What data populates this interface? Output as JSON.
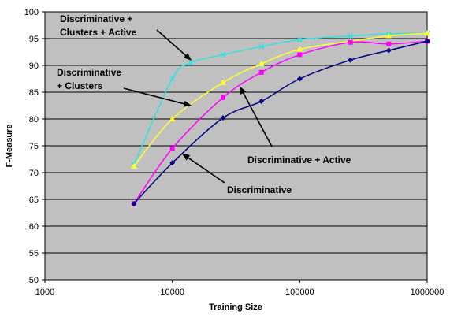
{
  "chart_data": {
    "type": "line",
    "xlabel": "Training Size",
    "ylabel": "F-Measure",
    "xscale": "log",
    "xlim": [
      1000,
      1000000
    ],
    "ylim": [
      50,
      100
    ],
    "xticks": [
      1000,
      10000,
      100000,
      1000000
    ],
    "xtick_labels": [
      "1000",
      "10000",
      "100000",
      "1000000"
    ],
    "yticks": [
      50,
      55,
      60,
      65,
      70,
      75,
      80,
      85,
      90,
      95,
      100
    ],
    "ytick_labels": [
      "50",
      "55",
      "60",
      "65",
      "70",
      "75",
      "80",
      "85",
      "90",
      "95",
      "100"
    ],
    "grid": "horizontal",
    "plot_background": "#c0c0c0",
    "series": [
      {
        "key": "cyan",
        "color": "#33e0e0",
        "marker": "x",
        "x": [
          5000,
          10000,
          14000,
          25000,
          50000,
          100000,
          250000,
          500000,
          1000000
        ],
        "y": [
          71.5,
          87.5,
          90.5,
          92.0,
          93.5,
          94.8,
          95.5,
          95.9,
          96.0
        ]
      },
      {
        "key": "yellow",
        "color": "#ffff33",
        "marker": "triangle",
        "x": [
          5000,
          10000,
          25000,
          50000,
          100000,
          250000,
          500000,
          1000000
        ],
        "y": [
          71.2,
          80.0,
          86.8,
          90.3,
          93.0,
          94.5,
          95.5,
          96.0
        ]
      },
      {
        "key": "magenta",
        "color": "#ff00ff",
        "marker": "square",
        "x": [
          5000,
          10000,
          25000,
          50000,
          100000,
          250000,
          500000,
          1000000
        ],
        "y": [
          64.2,
          74.5,
          84.0,
          88.7,
          92.0,
          94.3,
          94.0,
          94.5
        ]
      },
      {
        "key": "navy",
        "color": "#000080",
        "marker": "diamond",
        "x": [
          5000,
          10000,
          25000,
          50000,
          100000,
          250000,
          500000,
          1000000
        ],
        "y": [
          64.2,
          71.8,
          80.2,
          83.3,
          87.5,
          91.0,
          92.8,
          94.5
        ]
      }
    ],
    "annotations": [
      {
        "key": "a1",
        "lines": [
          "Discriminative +",
          "Clusters + Active"
        ],
        "target_x": 14000,
        "target_y": 91.0
      },
      {
        "key": "a2",
        "lines": [
          "Discriminative",
          "+ Clusters"
        ],
        "target_x": 14000,
        "target_y": 82.5
      },
      {
        "key": "a3",
        "lines": [
          "Discriminative + Active"
        ],
        "target_x": 34000,
        "target_y": 86.0
      },
      {
        "key": "a4",
        "lines": [
          "Discriminative"
        ],
        "target_x": 12000,
        "target_y": 73.5
      }
    ]
  }
}
